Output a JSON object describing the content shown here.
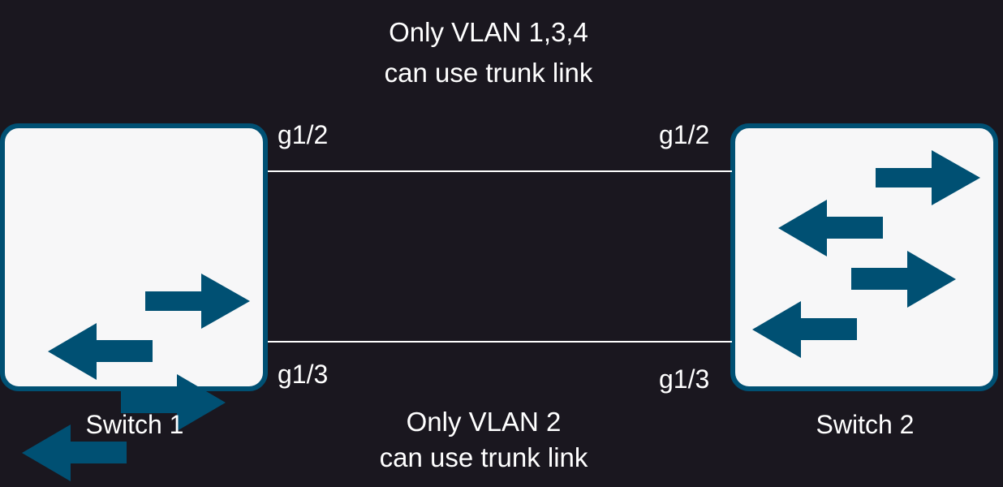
{
  "top_caption": {
    "line1": "Only VLAN 1,3,4",
    "line2": "can use trunk link"
  },
  "bottom_caption": {
    "line1": "Only VLAN 2",
    "line2": "can use trunk link"
  },
  "switch1": {
    "label": "Switch 1",
    "port_top": "g1/2",
    "port_bottom": "g1/3"
  },
  "switch2": {
    "label": "Switch 2",
    "port_top": "g1/2",
    "port_bottom": "g1/3"
  },
  "colors": {
    "background": "#1a171f",
    "switch_fill": "#f7f7f8",
    "switch_accent": "#005073",
    "text": "#ffffff"
  }
}
